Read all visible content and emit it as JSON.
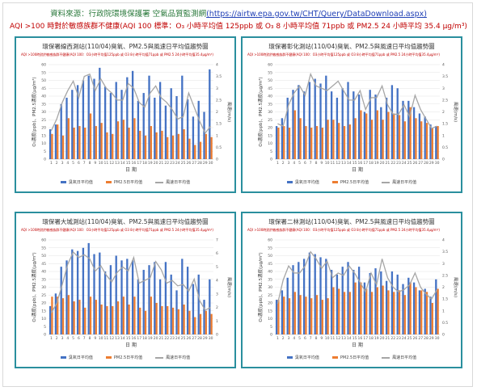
{
  "header": {
    "source_text": "資料來源：行政院環境保護署 空氣品質監測網",
    "source_url": "(https://airtw.epa.gov.tw/CHT/Query/DataDownload.aspx)",
    "aqi_note": "AQI >100 時對於敏感族群不健康(AQI 100 標準：O₃ 小時平均值 125ppb 或 O₃ 8 小時平均值 71ppb 或 PM2.5 24 小時平均 35.4 μg/m³)"
  },
  "colors": {
    "o3": "#4472c4",
    "pm25": "#ed7d31",
    "wind": "#a6a6a6",
    "panel_border": "#2a8f9e"
  },
  "legend": {
    "o3": "臭氧日平均值",
    "pm25": "PM2.5日平均值",
    "wind": "風速日平均值"
  },
  "chart_data": [
    {
      "type": "bar",
      "title": "環保署線西測站(110/04)臭氧、PM2.5與風速日平均值趨勢圖",
      "note": "AQI >100時對於敏感族群不健康(AQI 100：O3小時平均值125ppb 或 O3 8小時平均值71ppb 或 PM2.5 24小時平均值35.4μg/m³)",
      "xlabel": "日 期",
      "ylabel_left": "O₃濃度(ppb)、PM2.5濃度(μg/m³)",
      "ylabel_right": "風速(m/s)",
      "ylim": [
        0,
        60
      ],
      "yticks": [
        0,
        5,
        10,
        15,
        20,
        25,
        30,
        35,
        40,
        45,
        50,
        55,
        60
      ],
      "y2lim": [
        0,
        4
      ],
      "y2ticks": [
        0,
        0.5,
        1,
        1.5,
        2,
        2.5,
        3,
        3.5,
        4
      ],
      "categories": [
        "1",
        "2",
        "3",
        "4",
        "5",
        "6",
        "7",
        "8",
        "9",
        "10",
        "11",
        "12",
        "13",
        "14",
        "15",
        "16",
        "17",
        "18",
        "19",
        "20",
        "21",
        "22",
        "23",
        "24",
        "25",
        "26",
        "27",
        "28",
        "29",
        "30"
      ],
      "series": [
        {
          "name": "臭氧日平均值",
          "kind": "bar",
          "values": [
            19,
            22,
            35,
            39,
            44,
            47,
            50,
            53,
            51,
            58,
            46,
            42,
            49,
            44,
            52,
            56,
            37,
            42,
            53,
            39,
            49,
            34,
            45,
            40,
            53,
            38,
            27,
            37,
            30,
            57
          ]
        },
        {
          "name": "PM2.5日平均值",
          "kind": "bar",
          "values": [
            16,
            22,
            15,
            26,
            20,
            21,
            20,
            29,
            21,
            23,
            17,
            16,
            24,
            25,
            20,
            26,
            18,
            15,
            21,
            17,
            18,
            14,
            15,
            16,
            19,
            13,
            9,
            11,
            16,
            14
          ]
        },
        {
          "name": "風速日平均值",
          "kind": "line",
          "axis": "right",
          "values": [
            1.2,
            1.7,
            2.4,
            2.9,
            3.3,
            2.6,
            3.5,
            3.6,
            2.9,
            3.4,
            3.0,
            2.8,
            2.5,
            2.5,
            3.2,
            3.0,
            2.4,
            2.2,
            2.8,
            3.1,
            2.6,
            2.4,
            2.1,
            1.7,
            1.8,
            2.8,
            2.2,
            1.6,
            1.1,
            1.4
          ]
        }
      ]
    },
    {
      "type": "bar",
      "title": "環保署彰化測站(110/04)臭氧、PM2.5與風速日平均值趨勢圖",
      "note": "AQI >100時對於敏感族群不健康(AQI 100：O3小時平均值125ppb 或 O3 8小時平均值71ppb 或 PM2.5 24小時平均值35.4μg/m³)",
      "xlabel": "日 期",
      "ylabel_left": "O₃濃度(ppb)、PM2.5濃度(μg/m³)",
      "ylabel_right": "風速(m/s)",
      "ylim": [
        0,
        60
      ],
      "yticks": [
        0,
        5,
        10,
        15,
        20,
        25,
        30,
        35,
        40,
        45,
        50,
        55,
        60
      ],
      "y2lim": [
        0,
        4
      ],
      "y2ticks": [
        0,
        0.5,
        1,
        1.5,
        2,
        2.5,
        3,
        3.5,
        4
      ],
      "categories": [
        "1",
        "2",
        "3",
        "4",
        "5",
        "6",
        "7",
        "8",
        "9",
        "10",
        "11",
        "12",
        "13",
        "14",
        "15",
        "16",
        "17",
        "18",
        "19",
        "20",
        "21",
        "22",
        "23",
        "24",
        "25",
        "26",
        "27",
        "28",
        "29",
        "30"
      ],
      "series": [
        {
          "name": "臭氧日平均值",
          "kind": "bar",
          "values": [
            21,
            26,
            39,
            44,
            47,
            43,
            49,
            51,
            48,
            53,
            43,
            39,
            45,
            49,
            43,
            41,
            30,
            44,
            41,
            33,
            39,
            47,
            45,
            37,
            37,
            33,
            29,
            27,
            22,
            21
          ]
        },
        {
          "name": "PM2.5日平均值",
          "kind": "bar",
          "values": [
            20,
            21,
            20,
            31,
            26,
            21,
            20,
            21,
            20,
            25,
            25,
            23,
            21,
            22,
            26,
            31,
            29,
            25,
            31,
            25,
            30,
            29,
            28,
            24,
            33,
            26,
            24,
            23,
            20,
            21
          ]
        },
        {
          "name": "風速日平均值",
          "kind": "line",
          "axis": "right",
          "values": [
            1.5,
            1.4,
            2.3,
            2.8,
            3.1,
            2.7,
            3.6,
            3.1,
            3.0,
            2.9,
            3.1,
            3.3,
            2.9,
            2.5,
            2.5,
            2.9,
            2.1,
            2.6,
            2.6,
            3.1,
            2.3,
            1.9,
            1.9,
            2.3,
            1.8,
            2.7,
            2.1,
            1.7,
            1.3,
            1.4
          ]
        }
      ]
    },
    {
      "type": "bar",
      "title": "環保署大城測站(110/04)臭氧、PM2.5與風速日平均值趨勢圖",
      "note": "AQI >100時對於敏感族群不健康(AQI 100：O3小時平均值125ppb 或 O3 8小時平均值71ppb 或 PM2.5 24小時平均值35.4μg/m³)",
      "xlabel": "日 期",
      "ylabel_left": "O₃濃度(ppb)、PM2.5濃度(μg/m³)",
      "ylabel_right": "風速(m/s)",
      "ylim": [
        0,
        60
      ],
      "yticks": [
        0,
        5,
        10,
        15,
        20,
        25,
        30,
        35,
        40,
        45,
        50,
        55,
        60
      ],
      "y2lim": [
        0,
        7
      ],
      "y2ticks": [
        0,
        1,
        2,
        3,
        4,
        5,
        6,
        7
      ],
      "categories": [
        "1",
        "2",
        "3",
        "4",
        "5",
        "6",
        "7",
        "8",
        "9",
        "10",
        "11",
        "12",
        "13",
        "14",
        "15",
        "16",
        "17",
        "18",
        "19",
        "20",
        "21",
        "22",
        "23",
        "24",
        "25",
        "26",
        "27",
        "28",
        "29",
        "30"
      ],
      "series": [
        {
          "name": "臭氧日平均值",
          "kind": "bar",
          "values": [
            18,
            26,
            43,
            47,
            54,
            53,
            55,
            58,
            51,
            52,
            40,
            44,
            50,
            47,
            48,
            47,
            35,
            41,
            44,
            46,
            35,
            46,
            38,
            28,
            48,
            43,
            32,
            38,
            22,
            35
          ]
        },
        {
          "name": "PM2.5日平均值",
          "kind": "bar",
          "values": [
            24,
            24,
            23,
            25,
            21,
            22,
            17,
            24,
            22,
            19,
            18,
            18,
            21,
            24,
            19,
            24,
            17,
            15,
            24,
            20,
            18,
            18,
            17,
            16,
            19,
            15,
            11,
            13,
            15,
            13
          ]
        },
        {
          "name": "風速日平均值",
          "kind": "line",
          "axis": "right",
          "values": [
            1.6,
            2.3,
            3.7,
            5.2,
            6.1,
            5.7,
            5.9,
            5.6,
            4.7,
            5.1,
            4.4,
            3.9,
            4.6,
            5.0,
            4.7,
            5.7,
            3.8,
            4.0,
            4.2,
            5.4,
            4.8,
            3.8,
            4.0,
            3.6,
            3.7,
            3.2,
            4.1,
            2.5,
            1.8,
            2.0
          ]
        }
      ]
    },
    {
      "type": "bar",
      "title": "環保署二林測站(110/04)臭氧、PM2.5與風速日平均值趨勢圖",
      "note": "AQI >100時對於敏感族群不健康(AQI 100：O3小時平均值125ppb 或 O3 8小時平均值71ppb 或 PM2.5 24小時平均值35.4μg/m³)",
      "xlabel": "日 期",
      "ylabel_left": "O₃濃度(ppb)、PM2.5濃度(μg/m³)",
      "ylabel_right": "風速(m/s)",
      "ylim": [
        0,
        60
      ],
      "yticks": [
        0,
        5,
        10,
        15,
        20,
        25,
        30,
        35,
        40,
        45,
        50,
        55,
        60
      ],
      "y2lim": [
        0,
        4
      ],
      "y2ticks": [
        0,
        0.5,
        1,
        1.5,
        2,
        2.5,
        3,
        3.5,
        4
      ],
      "categories": [
        "1",
        "2",
        "3",
        "4",
        "5",
        "6",
        "7",
        "8",
        "9",
        "10",
        "11",
        "12",
        "13",
        "14",
        "15",
        "16",
        "17",
        "18",
        "19",
        "20",
        "21",
        "22",
        "23",
        "24",
        "25",
        "26",
        "27",
        "28",
        "29",
        "30"
      ],
      "series": [
        {
          "name": "臭氧日平均值",
          "kind": "bar",
          "values": [
            22,
            28,
            36,
            44,
            46,
            48,
            52,
            51,
            49,
            48,
            41,
            38,
            43,
            46,
            41,
            43,
            33,
            39,
            42,
            40,
            34,
            40,
            38,
            32,
            36,
            33,
            28,
            29,
            24,
            35
          ]
        },
        {
          "name": "PM2.5日平均值",
          "kind": "bar",
          "values": [
            22,
            24,
            23,
            27,
            25,
            24,
            23,
            25,
            22,
            23,
            30,
            29,
            27,
            27,
            33,
            33,
            29,
            27,
            30,
            31,
            28,
            27,
            28,
            25,
            33,
            30,
            28,
            27,
            20,
            29
          ]
        },
        {
          "name": "風速日平均值",
          "kind": "line",
          "axis": "right",
          "values": [
            1.3,
            2.3,
            2.9,
            2.6,
            2.6,
            2.9,
            3.5,
            3.2,
            2.8,
            3.1,
            2.4,
            2.6,
            2.5,
            2.9,
            2.6,
            2.2,
            1.8,
            2.6,
            2.1,
            3.2,
            2.4,
            2.0,
            1.8,
            1.9,
            2.1,
            2.6,
            2.0,
            1.7,
            1.5,
            1.9
          ]
        }
      ]
    }
  ]
}
